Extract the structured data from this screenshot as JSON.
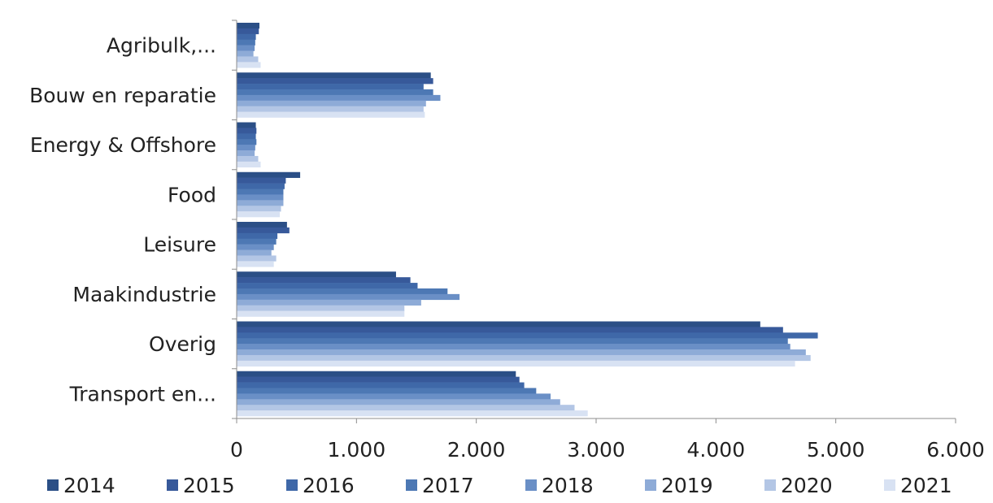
{
  "chart_data": {
    "type": "bar",
    "orientation": "horizontal",
    "categories": [
      "Agribulk,...",
      "Bouw en reparatie",
      "Energy & Offshore",
      "Food",
      "Leisure",
      "Maakindustrie",
      "Overig",
      "Transport en..."
    ],
    "series": [
      {
        "name": "2014",
        "color": "#2b4f86",
        "values": [
          190,
          1620,
          160,
          530,
          420,
          1330,
          4370,
          2330
        ]
      },
      {
        "name": "2015",
        "color": "#37599a",
        "values": [
          185,
          1640,
          165,
          410,
          440,
          1450,
          4560,
          2360
        ]
      },
      {
        "name": "2016",
        "color": "#3f68a8",
        "values": [
          160,
          1560,
          160,
          400,
          340,
          1510,
          4850,
          2400
        ]
      },
      {
        "name": "2017",
        "color": "#4d78b4",
        "values": [
          155,
          1640,
          165,
          390,
          330,
          1760,
          4600,
          2500
        ]
      },
      {
        "name": "2018",
        "color": "#6a8fc6",
        "values": [
          150,
          1700,
          155,
          390,
          310,
          1860,
          4620,
          2620
        ]
      },
      {
        "name": "2019",
        "color": "#8eabd7",
        "values": [
          140,
          1580,
          150,
          390,
          290,
          1540,
          4750,
          2700
        ]
      },
      {
        "name": "2020",
        "color": "#b3c6e5",
        "values": [
          180,
          1560,
          180,
          370,
          330,
          1400,
          4790,
          2820
        ]
      },
      {
        "name": "2021",
        "color": "#d8e2f3",
        "values": [
          200,
          1570,
          200,
          360,
          310,
          1400,
          4660,
          2930
        ]
      }
    ],
    "x_ticks": [
      "0",
      "1.000",
      "2.000",
      "3.000",
      "4.000",
      "5.000",
      "6.000"
    ],
    "xlim": [
      0,
      6000
    ],
    "title": "",
    "xlabel": "",
    "ylabel": "",
    "legend_position": "bottom",
    "grid": false
  }
}
